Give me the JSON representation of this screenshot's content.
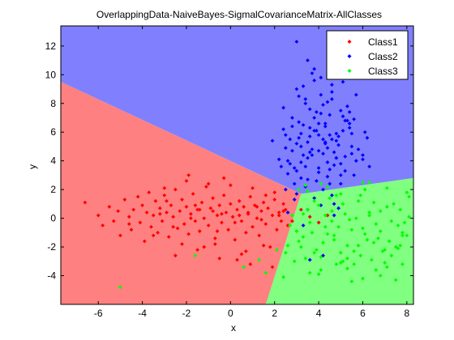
{
  "chart_data": {
    "type": "scatter",
    "title": "OverlappingData-NaiveBayes-SigmalCovarianceMatrix-AllClasses",
    "xlabel": "x",
    "ylabel": "y",
    "xlim": [
      -7.7,
      8.3
    ],
    "ylim": [
      -6.0,
      13.4
    ],
    "xticks": [
      -6,
      -4,
      -2,
      0,
      2,
      4,
      6,
      8
    ],
    "yticks": [
      -4,
      -2,
      0,
      2,
      4,
      6,
      8,
      10,
      12
    ],
    "xtick_labels": [
      "-6",
      "-4",
      "-2",
      "0",
      "2",
      "4",
      "6",
      "8"
    ],
    "ytick_labels": [
      "-4",
      "-2",
      "0",
      "2",
      "4",
      "6",
      "8",
      "10",
      "12"
    ],
    "grid": false,
    "legend": {
      "position": "top-right",
      "entries": [
        "Class1",
        "Class2",
        "Class3"
      ]
    },
    "decision_regions": [
      {
        "class": "Class1",
        "color": "#ff8080"
      },
      {
        "class": "Class2",
        "color": "#8080ff"
      },
      {
        "class": "Class3",
        "color": "#80ff80"
      }
    ],
    "series": [
      {
        "name": "Class1",
        "color": "#ff0000",
        "marker": "diamond",
        "x": [
          -6.6,
          -6.0,
          -5.8,
          -5.5,
          -5.3,
          -5.1,
          -5.0,
          -4.8,
          -4.6,
          -4.5,
          -4.4,
          -4.2,
          -4.1,
          -4.0,
          -3.9,
          -3.8,
          -3.7,
          -3.6,
          -3.5,
          -3.4,
          -3.3,
          -3.2,
          -3.1,
          -3.0,
          -2.9,
          -2.8,
          -2.7,
          -2.6,
          -2.5,
          -2.4,
          -2.3,
          -2.2,
          -2.1,
          -2.0,
          -1.9,
          -1.8,
          -1.7,
          -1.6,
          -1.5,
          -1.4,
          -1.3,
          -1.2,
          -1.1,
          -1.0,
          -0.9,
          -0.8,
          -0.7,
          -0.6,
          -0.5,
          -0.4,
          -0.3,
          -0.2,
          -0.1,
          0.0,
          0.1,
          0.2,
          0.3,
          0.4,
          0.5,
          0.6,
          0.7,
          0.8,
          0.9,
          1.0,
          1.1,
          1.2,
          1.3,
          1.4,
          1.5,
          1.6,
          1.7,
          1.8,
          1.9,
          2.0,
          2.1,
          2.2,
          2.3,
          2.4,
          2.5,
          2.6,
          -2.5,
          -2.0,
          -1.5,
          -1.0,
          -0.5,
          0.0,
          0.5,
          1.0,
          1.5,
          2.0,
          -3.5,
          -3.0,
          -2.2,
          -1.2,
          -0.3,
          0.7,
          1.6,
          -1.8,
          -0.8,
          0.2,
          1.2,
          2.2,
          -4.6,
          -3.2,
          -2.6,
          -1.4,
          -0.6,
          0.4,
          1.4,
          2.4,
          -1.6,
          -0.4,
          0.8,
          2.8,
          3.2,
          3.6,
          4.0,
          4.4,
          -2.9,
          1.9,
          -0.7,
          0.3,
          -1.9,
          0.9
        ],
        "y": [
          1.1,
          0.2,
          -0.5,
          0.8,
          -0.2,
          0.5,
          -1.2,
          1.3,
          0.1,
          -0.8,
          0.6,
          1.5,
          -0.3,
          0.9,
          -1.6,
          0.4,
          1.8,
          -0.6,
          0.2,
          1.2,
          -1.0,
          0.7,
          -0.2,
          1.6,
          0.4,
          -1.3,
          0.9,
          0.1,
          2.0,
          -0.7,
          0.5,
          1.3,
          -0.4,
          0.8,
          -1.1,
          0.3,
          1.7,
          -0.2,
          0.6,
          -0.9,
          1.1,
          0.0,
          2.2,
          -0.5,
          0.7,
          1.4,
          -1.4,
          0.2,
          0.9,
          -0.3,
          1.6,
          0.4,
          -0.8,
          1.0,
          0.1,
          -1.5,
          0.6,
          1.2,
          -0.2,
          0.8,
          -1.0,
          0.3,
          1.5,
          -0.6,
          0.9,
          0.0,
          -1.2,
          0.5,
          1.1,
          -0.4,
          0.7,
          -2.0,
          0.2,
          1.3,
          -0.8,
          0.4,
          -0.2,
          1.0,
          0.6,
          -0.5,
          -2.6,
          2.6,
          -2.2,
          2.4,
          -2.8,
          2.3,
          -2.5,
          2.1,
          -1.9,
          1.8,
          -1.2,
          2.1,
          -1.8,
          -2.0,
          2.8,
          -2.3,
          1.6,
          0.0,
          0.5,
          -0.3,
          0.8,
          0.2,
          -0.4,
          0.3,
          -0.6,
          0.6,
          -0.9,
          0.2,
          -0.1,
          0.5,
          0.9,
          0.3,
          0.4,
          -0.2,
          0.6,
          0.1,
          -0.3,
          0.2,
          1.2,
          -3.4,
          -1.8,
          -2.9,
          3.0,
          -3.2
        ]
      },
      {
        "name": "Class2",
        "color": "#0000ff",
        "marker": "diamond",
        "x": [
          2.6,
          3.0,
          3.4,
          3.8,
          4.2,
          4.6,
          5.0,
          5.4,
          5.8,
          6.2,
          2.8,
          3.2,
          3.6,
          4.0,
          4.4,
          4.8,
          5.2,
          5.6,
          2.5,
          2.9,
          3.3,
          3.7,
          4.1,
          4.5,
          4.9,
          5.3,
          5.7,
          6.1,
          2.7,
          3.1,
          3.5,
          3.9,
          4.3,
          4.7,
          5.1,
          5.5,
          1.9,
          2.4,
          2.8,
          3.2,
          3.6,
          4.0,
          4.4,
          4.8,
          5.2,
          5.6,
          6.0,
          2.3,
          2.7,
          3.1,
          3.5,
          3.9,
          4.3,
          4.7,
          5.1,
          5.5,
          3.0,
          3.4,
          3.8,
          4.2,
          4.6,
          5.0,
          5.4,
          2.6,
          3.0,
          3.4,
          3.8,
          4.2,
          4.6,
          5.0,
          2.4,
          2.8,
          3.2,
          3.6,
          4.0,
          4.4,
          4.8,
          5.2,
          3.3,
          3.7,
          4.1,
          4.5,
          2.9,
          3.5,
          4.1,
          4.7,
          3.1,
          3.9,
          4.5,
          2.5,
          3.3,
          4.3,
          5.3,
          2.9,
          3.7,
          4.4,
          3.2,
          4.0,
          4.8,
          3.6,
          4.2,
          2.5,
          3.0,
          3.5,
          4.0,
          4.5,
          5.0,
          3.8,
          4.3,
          4.9,
          3.4,
          4.6,
          5.5,
          2.2,
          3.0,
          3.8,
          4.6,
          5.4,
          3.5,
          4.1,
          6.0,
          5.7,
          6.3,
          5.1,
          3.6,
          4.2,
          2.6,
          4.9,
          3.3,
          4.7
        ],
        "y": [
          4.0,
          5.2,
          3.6,
          6.1,
          4.5,
          5.5,
          3.8,
          6.3,
          4.8,
          5.6,
          7.0,
          2.8,
          7.6,
          3.2,
          8.1,
          4.2,
          6.8,
          3.0,
          5.8,
          2.4,
          6.5,
          4.4,
          7.3,
          3.4,
          5.1,
          7.8,
          4.0,
          6.0,
          3.8,
          8.5,
          5.3,
          2.6,
          6.4,
          4.6,
          7.1,
          5.0,
          5.4,
          6.2,
          4.7,
          3.9,
          5.7,
          6.6,
          2.9,
          5.9,
          4.3,
          6.9,
          4.1,
          3.6,
          5.5,
          6.7,
          4.2,
          7.4,
          5.2,
          3.7,
          6.1,
          4.5,
          9.0,
          8.3,
          9.6,
          7.9,
          8.8,
          7.5,
          6.6,
          3.1,
          1.7,
          2.2,
          1.4,
          2.0,
          1.6,
          2.4,
          7.7,
          6.4,
          5.0,
          4.6,
          5.8,
          4.9,
          5.4,
          3.3,
          9.2,
          10.1,
          8.6,
          7.2,
          1.3,
          0.6,
          0.9,
          1.0,
          5.6,
          6.1,
          5.8,
          4.9,
          4.4,
          5.3,
          6.8,
          3.5,
          4.8,
          3.9,
          5.9,
          4.7,
          4.2,
          6.3,
          5.5,
          2.0,
          3.3,
          2.7,
          3.5,
          2.4,
          3.0,
          7.0,
          6.6,
          5.7,
          8.0,
          8.3,
          5.9,
          4.1,
          12.3,
          10.4,
          9.3,
          7.4,
          11.0,
          9.8,
          4.4,
          8.6,
          3.6,
          9.5,
          -2.9,
          -2.6,
          0.4,
          0.7,
          -0.5,
          0.2
        ]
      },
      {
        "name": "Class3",
        "color": "#00ff00",
        "marker": "diamond",
        "x": [
          2.7,
          3.1,
          3.5,
          3.9,
          4.3,
          4.7,
          5.1,
          5.5,
          5.9,
          6.3,
          6.7,
          7.1,
          7.5,
          7.9,
          8.1,
          2.9,
          3.3,
          3.7,
          4.1,
          4.5,
          4.9,
          5.3,
          5.7,
          6.1,
          6.5,
          6.9,
          7.3,
          7.7,
          2.5,
          3.0,
          3.4,
          3.8,
          4.2,
          4.6,
          5.0,
          5.4,
          5.8,
          6.2,
          6.6,
          7.0,
          7.4,
          7.8,
          3.2,
          3.6,
          4.0,
          4.4,
          4.8,
          5.2,
          5.6,
          6.0,
          6.4,
          6.8,
          7.2,
          7.6,
          8.0,
          2.8,
          3.3,
          3.8,
          4.3,
          4.8,
          5.3,
          5.8,
          6.3,
          6.8,
          7.3,
          7.8,
          3.5,
          4.1,
          4.7,
          5.3,
          5.9,
          6.5,
          7.1,
          7.7,
          2.6,
          3.1,
          3.6,
          4.1,
          4.6,
          5.1,
          5.6,
          6.1,
          6.6,
          7.1,
          7.6,
          8.1,
          3.0,
          4.0,
          5.0,
          6.0,
          7.0,
          8.0,
          1.3,
          0.6,
          2.1,
          1.6,
          2.4,
          -5.0,
          -1.6,
          5.5,
          6.0,
          6.8,
          7.8,
          4.4,
          3.4,
          5.0,
          6.3,
          7.5
        ],
        "y": [
          -0.5,
          -1.6,
          0.6,
          -2.2,
          0.2,
          -1.2,
          1.0,
          -0.8,
          -2.6,
          0.4,
          -1.4,
          0.8,
          -2.0,
          -0.3,
          1.5,
          -3.0,
          0.3,
          -1.0,
          -2.7,
          1.4,
          -0.6,
          -1.9,
          0.0,
          -1.1,
          1.1,
          -2.3,
          -0.2,
          0.6,
          -2.4,
          -0.9,
          -2.8,
          1.2,
          -1.7,
          0.5,
          -2.4,
          -0.1,
          1.2,
          -1.5,
          -0.4,
          -2.2,
          1.0,
          -1.2,
          -2.0,
          -0.3,
          0.9,
          -1.1,
          -3.2,
          0.3,
          -2.3,
          -0.7,
          -2.9,
          0.5,
          -1.6,
          -0.5,
          1.8,
          0.2,
          -1.3,
          -2.4,
          -0.6,
          1.6,
          -2.8,
          -1.9,
          0.2,
          -0.9,
          -2.6,
          -1.0,
          1.9,
          -3.6,
          -1.5,
          -3.5,
          1.6,
          -1.7,
          -3.4,
          -1.9,
          -1.9,
          2.0,
          -3.8,
          2.4,
          -0.2,
          -3.0,
          -3.2,
          2.0,
          -3.6,
          2.1,
          -2.1,
          0.1,
          -0.9,
          -3.9,
          1.7,
          2.5,
          -3.1,
          -1.2,
          -2.9,
          -3.4,
          -2.2,
          -3.8,
          -4.1,
          -4.8,
          -2.6,
          -4.4,
          -4.2,
          -4.0,
          -3.2,
          2.2,
          2.3,
          -3.1,
          2.5,
          -4.3
        ]
      }
    ]
  }
}
